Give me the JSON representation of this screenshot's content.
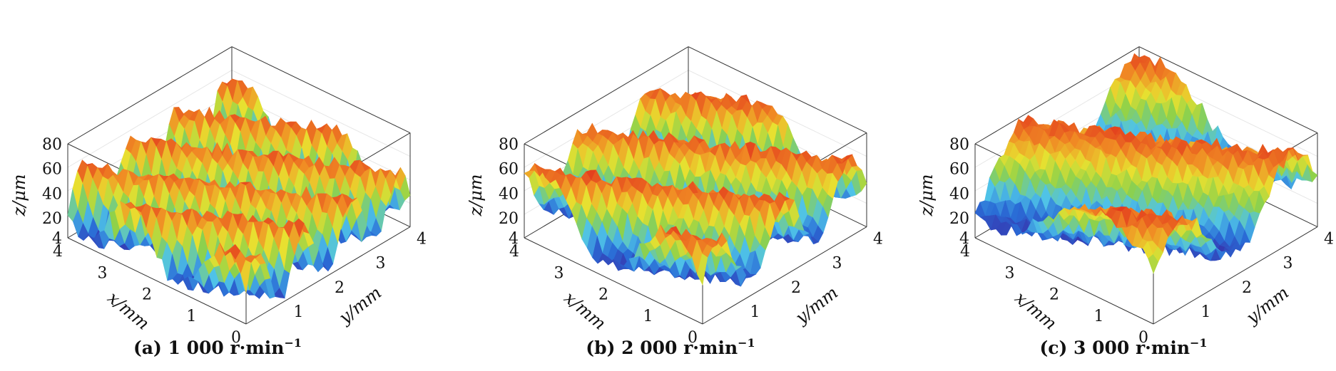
{
  "chart_data": [
    {
      "type": "surface",
      "caption": {
        "label": "(a) 1 000 r·min",
        "superscript": "−1"
      },
      "xlabel": "x/mm",
      "ylabel": "y/mm",
      "zlabel": "z/μm",
      "xlim": [
        0,
        4
      ],
      "ylim": [
        0,
        4
      ],
      "zlim": [
        4,
        80
      ],
      "x_ticks": [
        "0",
        "1",
        "2",
        "3",
        "4"
      ],
      "y_ticks": [
        "1",
        "2",
        "3",
        "4"
      ],
      "z_ticks": [
        "4",
        "20",
        "40",
        "60",
        "80"
      ],
      "ridge_count": 7,
      "z_range": [
        4,
        60
      ],
      "grid": true,
      "colormap": [
        "#3b1f9e",
        "#2a6cd6",
        "#4fc3e8",
        "#8ed14a",
        "#e8e030",
        "#f08a24",
        "#e02a1c"
      ]
    },
    {
      "type": "surface",
      "caption": {
        "label": "(b) 2 000 r·min",
        "superscript": "−1"
      },
      "xlabel": "x/mm",
      "ylabel": "y/mm",
      "zlabel": "z/μm",
      "xlim": [
        0,
        4
      ],
      "ylim": [
        0,
        4
      ],
      "zlim": [
        4,
        80
      ],
      "x_ticks": [
        "0",
        "1",
        "2",
        "3",
        "4"
      ],
      "y_ticks": [
        "1",
        "2",
        "3",
        "4"
      ],
      "z_ticks": [
        "4",
        "20",
        "40",
        "60",
        "80"
      ],
      "ridge_count": 5,
      "z_range": [
        10,
        70
      ],
      "grid": true,
      "colormap": [
        "#3b1f9e",
        "#2a6cd6",
        "#4fc3e8",
        "#8ed14a",
        "#e8e030",
        "#f08a24",
        "#e02a1c"
      ]
    },
    {
      "type": "surface",
      "caption": {
        "label": "(c) 3 000 r·min",
        "superscript": "−1"
      },
      "xlabel": "x/mm",
      "ylabel": "y/mm",
      "zlabel": "z/μm",
      "xlim": [
        0,
        4
      ],
      "ylim": [
        0,
        4
      ],
      "zlim": [
        4,
        80
      ],
      "x_ticks": [
        "0",
        "1",
        "2",
        "3",
        "4"
      ],
      "y_ticks": [
        "1",
        "2",
        "3",
        "4"
      ],
      "z_ticks": [
        "4",
        "20",
        "40",
        "60",
        "80"
      ],
      "ridge_count": 3,
      "z_range": [
        15,
        80
      ],
      "grid": true,
      "colormap": [
        "#3b1f9e",
        "#2a6cd6",
        "#4fc3e8",
        "#8ed14a",
        "#e8e030",
        "#f08a24",
        "#e02a1c"
      ]
    }
  ]
}
